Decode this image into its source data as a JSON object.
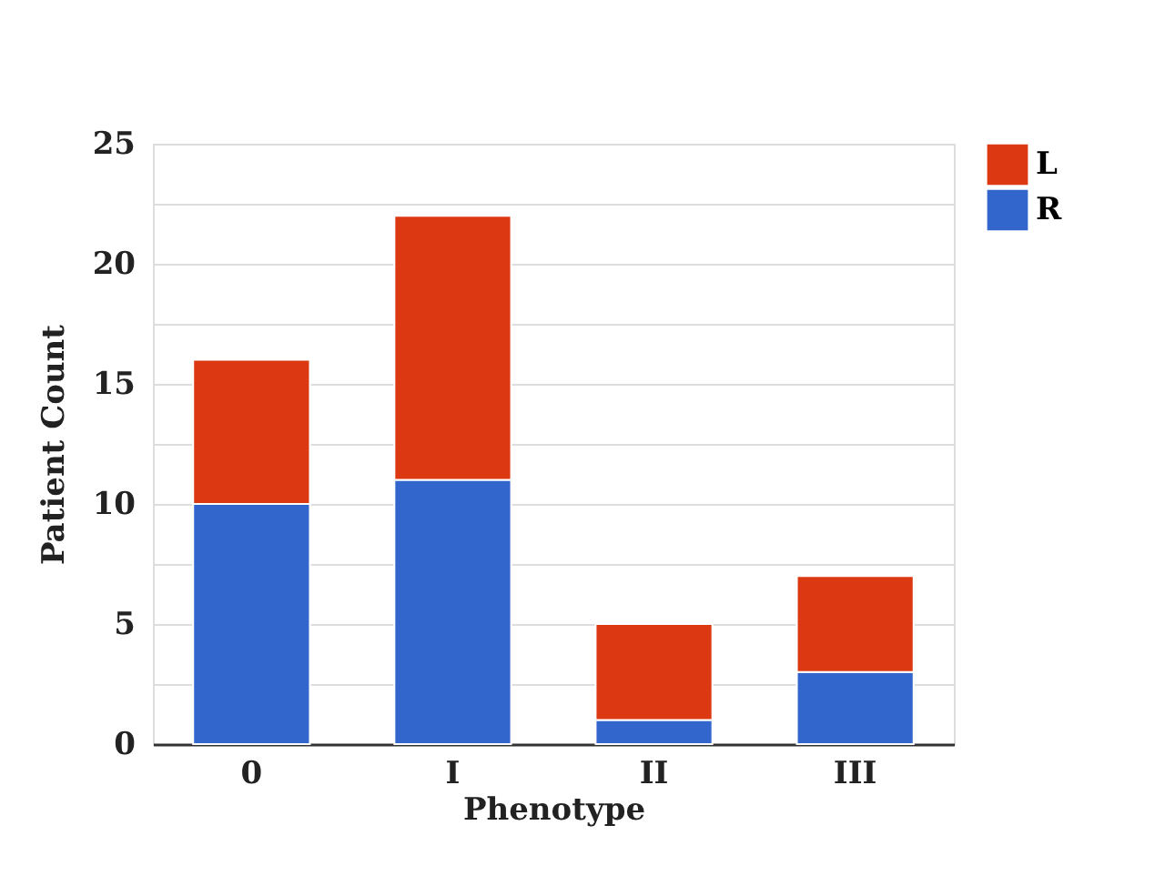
{
  "chart_data": {
    "type": "bar",
    "stacked": true,
    "xlabel": "Phenotype",
    "ylabel": "Patient Count",
    "categories": [
      "0",
      "I",
      "II",
      "III"
    ],
    "series": [
      {
        "name": "R",
        "color": "#3366cc",
        "values": [
          10,
          11,
          1,
          3
        ]
      },
      {
        "name": "L",
        "color": "#dc3912",
        "values": [
          6,
          11,
          4,
          4
        ]
      }
    ],
    "ylim": [
      0,
      25
    ],
    "yticks": [
      0,
      {
        "value": 2.5,
        "label": null
      },
      5,
      {
        "value": 7.5,
        "label": null
      },
      10,
      {
        "value": 12.5,
        "label": null
      },
      15,
      {
        "value": 17.5,
        "label": null
      },
      20,
      {
        "value": 22.5,
        "label": null
      },
      25
    ],
    "grid": "y",
    "legend": "top right"
  }
}
